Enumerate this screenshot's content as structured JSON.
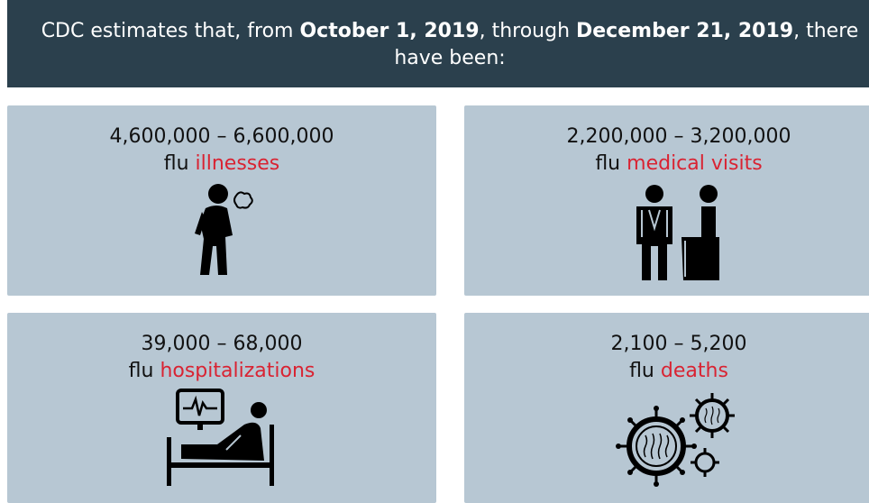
{
  "header": {
    "parts": [
      "CDC estimates that, from ",
      "October 1, 2019",
      ", through ",
      "December 21, 2019",
      ", there have been:"
    ]
  },
  "cards": [
    {
      "range": "4,600,000 – 6,600,000",
      "prefix": "flu",
      "highlight": "illnesses"
    },
    {
      "range": "2,200,000 – 3,200,000",
      "prefix": "flu",
      "highlight": "medical visits"
    },
    {
      "range": "39,000 – 68,000",
      "prefix": "flu",
      "highlight": "hospitalizations"
    },
    {
      "range": "2,100 – 5,200",
      "prefix": "flu",
      "highlight": "deaths"
    }
  ]
}
